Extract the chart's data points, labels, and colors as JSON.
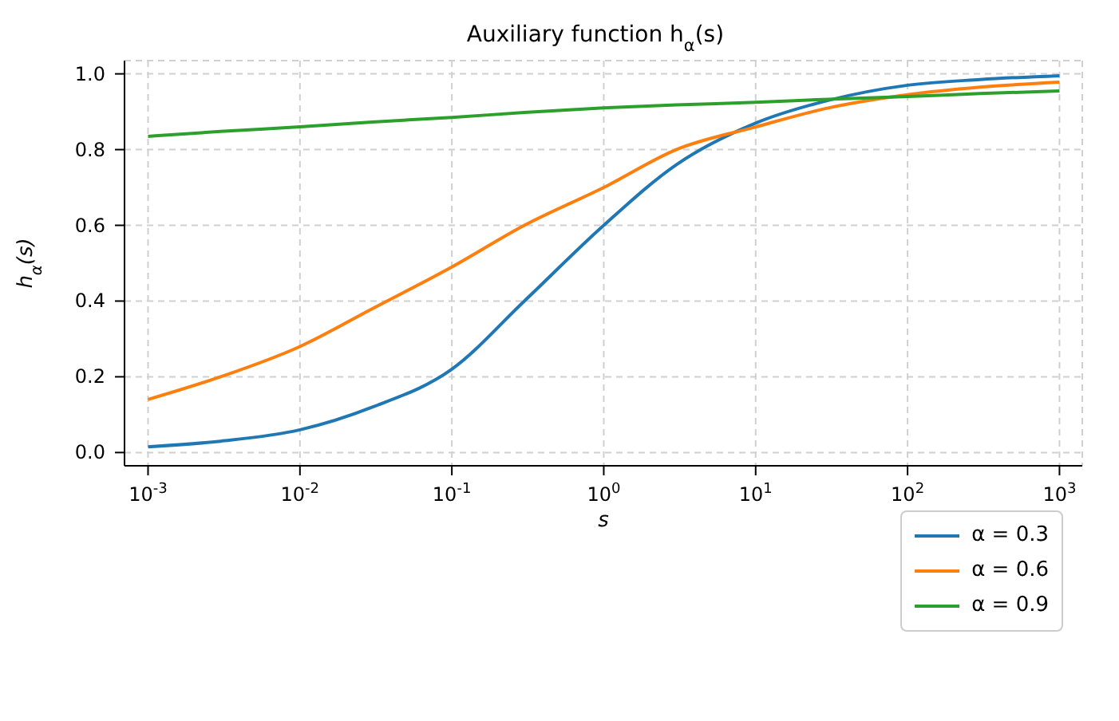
{
  "chart_data": {
    "type": "line",
    "title": "Auxiliary function h$_{α}$(s)",
    "xlabel": "s",
    "ylabel": "h$_{α}$(s)",
    "log": "x",
    "x": [
      0.001,
      0.003,
      0.01,
      0.03,
      0.1,
      0.3,
      1,
      3,
      10,
      30,
      100,
      300,
      1000
    ],
    "series": [
      {
        "name": "α = 0.3",
        "color": "#1f77b4",
        "values": [
          0.015,
          0.03,
          0.06,
          0.12,
          0.22,
          0.4,
          0.6,
          0.76,
          0.87,
          0.93,
          0.97,
          0.985,
          0.995
        ]
      },
      {
        "name": "α = 0.6",
        "color": "#ff7f0e",
        "values": [
          0.14,
          0.2,
          0.28,
          0.38,
          0.49,
          0.6,
          0.7,
          0.8,
          0.86,
          0.91,
          0.945,
          0.965,
          0.978
        ]
      },
      {
        "name": "α = 0.9",
        "color": "#2ca02c",
        "values": [
          0.835,
          0.848,
          0.86,
          0.873,
          0.885,
          0.898,
          0.91,
          0.918,
          0.925,
          0.933,
          0.94,
          0.948,
          0.955
        ]
      }
    ],
    "xlim": [
      0.0007,
      1413
    ],
    "ylim": [
      -0.035,
      1.035
    ],
    "xticks": [
      {
        "value": 0.001,
        "label": "10$^{-3}$"
      },
      {
        "value": 0.01,
        "label": "10$^{-2}$"
      },
      {
        "value": 0.1,
        "label": "10$^{-1}$"
      },
      {
        "value": 1,
        "label": "10$^{0}$"
      },
      {
        "value": 10,
        "label": "10$^{1}$"
      },
      {
        "value": 100,
        "label": "10$^{2}$"
      },
      {
        "value": 1000,
        "label": "10$^{3}$"
      }
    ],
    "yticks": [
      {
        "value": 0,
        "label": "0.0"
      },
      {
        "value": 0.2,
        "label": "0.2"
      },
      {
        "value": 0.4,
        "label": "0.4"
      },
      {
        "value": 0.6,
        "label": "0.6"
      },
      {
        "value": 0.8,
        "label": "0.8"
      },
      {
        "value": 1,
        "label": "1.0"
      }
    ],
    "grid": true,
    "legend": "bottom right",
    "line_style": "solid",
    "marker": "none"
  }
}
